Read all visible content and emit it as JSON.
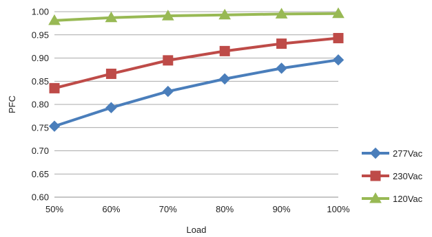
{
  "chart_data": {
    "type": "line",
    "title": "",
    "xlabel": "Load",
    "ylabel": "PFC",
    "categories": [
      "50%",
      "60%",
      "70%",
      "80%",
      "90%",
      "100%"
    ],
    "ylim": [
      0.6,
      1.0
    ],
    "yticks": [
      "0.60",
      "0.65",
      "0.70",
      "0.75",
      "0.80",
      "0.85",
      "0.90",
      "0.95",
      "1.00"
    ],
    "grid": "horizontal",
    "legend_position": "right",
    "series": [
      {
        "name": "277Vac",
        "values": [
          0.753,
          0.793,
          0.828,
          0.855,
          0.878,
          0.896
        ],
        "color": "#4a7ebb",
        "marker": "diamond"
      },
      {
        "name": "230Vac",
        "values": [
          0.835,
          0.866,
          0.895,
          0.915,
          0.931,
          0.943
        ],
        "color": "#be4b48",
        "marker": "square"
      },
      {
        "name": "120Vac",
        "values": [
          0.981,
          0.987,
          0.991,
          0.993,
          0.995,
          0.996
        ],
        "color": "#98b954",
        "marker": "triangle"
      }
    ]
  }
}
